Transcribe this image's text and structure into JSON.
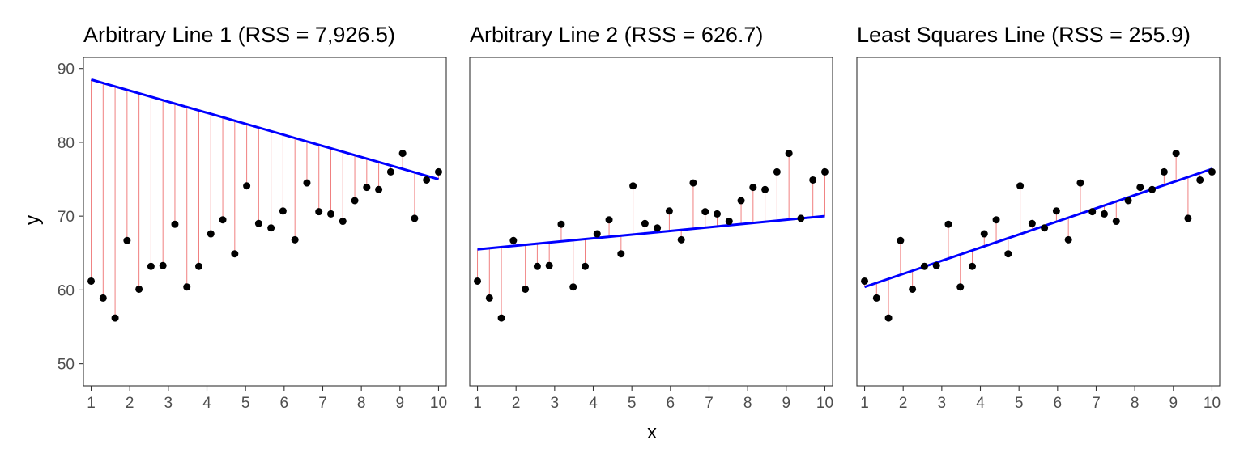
{
  "chart_data": {
    "type": "scatter",
    "xlabel": "x",
    "ylabel": "y",
    "xlim": [
      0.8,
      10.2
    ],
    "ylim": [
      47,
      91.5
    ],
    "x_ticks": [
      1,
      2,
      3,
      4,
      5,
      6,
      7,
      8,
      9,
      10
    ],
    "y_ticks": [
      50,
      60,
      70,
      80,
      90
    ],
    "colors": {
      "points": "#000000",
      "fit_line": "#0000ff",
      "residual": "#f08080",
      "panel_border": "#333333",
      "tick": "#4d4d4d"
    },
    "points": {
      "x": [
        1.0,
        1.31,
        1.62,
        1.93,
        2.24,
        2.55,
        2.86,
        3.17,
        3.48,
        3.79,
        4.1,
        4.41,
        4.72,
        5.03,
        5.34,
        5.66,
        5.97,
        6.28,
        6.59,
        6.9,
        7.21,
        7.52,
        7.83,
        8.14,
        8.45,
        8.76,
        9.07,
        9.38,
        9.69,
        10.0
      ],
      "y": [
        61.2,
        58.9,
        56.2,
        66.7,
        60.1,
        63.2,
        63.3,
        68.9,
        60.4,
        63.2,
        67.6,
        69.5,
        64.9,
        74.1,
        69.0,
        68.4,
        70.7,
        66.8,
        74.5,
        70.6,
        70.3,
        69.3,
        72.1,
        73.9,
        73.6,
        76.0,
        78.5,
        69.7,
        74.9,
        76.0
      ]
    },
    "panels": [
      {
        "title": "Arbitrary Line 1 (RSS = 7,926.5)",
        "line": {
          "x1": 1,
          "y1": 88.5,
          "x2": 10,
          "y2": 75.0
        }
      },
      {
        "title": "Arbitrary Line 2 (RSS = 626.7)",
        "line": {
          "x1": 1,
          "y1": 65.5,
          "x2": 10,
          "y2": 70.0
        }
      },
      {
        "title": "Least Squares Line (RSS = 255.9)",
        "line": {
          "x1": 1,
          "y1": 60.4,
          "x2": 10,
          "y2": 76.4
        }
      }
    ]
  }
}
